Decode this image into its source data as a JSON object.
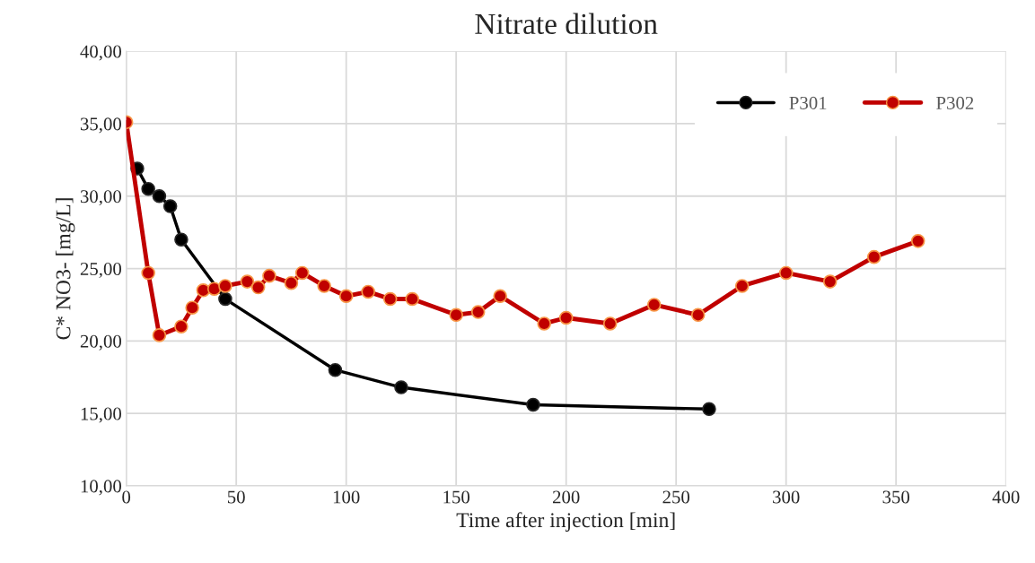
{
  "chart_data": {
    "type": "line",
    "title": "Nitrate dilution",
    "xlabel": "Time after injection [min]",
    "ylabel": "C* NO3- [mg/L]",
    "series": [
      {
        "name": "P301",
        "color": "#000000",
        "x": [
          5,
          10,
          15,
          20,
          25,
          45,
          95,
          125,
          185,
          265
        ],
        "values": [
          31.9,
          30.5,
          30.0,
          29.3,
          27.0,
          22.9,
          18.0,
          16.8,
          15.6,
          15.3
        ]
      },
      {
        "name": "P302",
        "color": "#c00000",
        "x": [
          0,
          10,
          15,
          25,
          30,
          35,
          40,
          45,
          55,
          60,
          65,
          75,
          80,
          90,
          100,
          110,
          120,
          130,
          150,
          160,
          170,
          190,
          200,
          220,
          240,
          260,
          280,
          300,
          320,
          340,
          360
        ],
        "values": [
          35.1,
          24.7,
          20.4,
          21.0,
          22.3,
          23.5,
          23.6,
          23.8,
          24.1,
          23.7,
          24.5,
          24.0,
          24.7,
          23.8,
          23.1,
          23.4,
          22.9,
          22.9,
          21.8,
          22.0,
          23.1,
          21.2,
          21.6,
          21.2,
          22.5,
          21.8,
          23.8,
          24.7,
          24.1,
          25.8,
          26.9
        ]
      }
    ],
    "xlim": [
      0,
      400
    ],
    "xticks": [
      0,
      50,
      100,
      150,
      200,
      250,
      300,
      350,
      400
    ],
    "ylim": [
      10,
      40
    ],
    "yticks": [
      {
        "value": 10,
        "label": "10,00"
      },
      {
        "value": 15,
        "label": "15,00"
      },
      {
        "value": 20,
        "label": "20,00"
      },
      {
        "value": 25,
        "label": "25,00"
      },
      {
        "value": 30,
        "label": "30,00"
      },
      {
        "value": 35,
        "label": "35,00"
      },
      {
        "value": 40,
        "label": "40,00"
      }
    ],
    "grid": true,
    "legend": "top right",
    "marker": "circle",
    "line_style": "solid"
  }
}
